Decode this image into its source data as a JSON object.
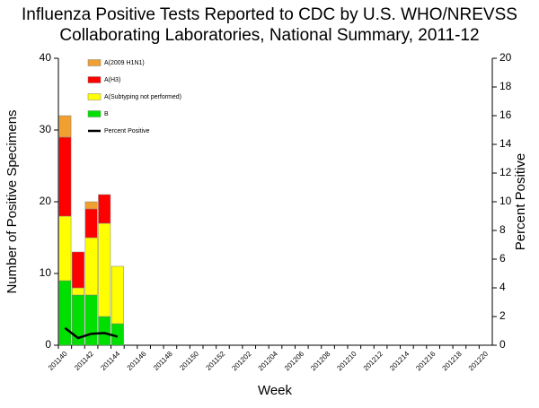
{
  "chart_data": {
    "type": "bar",
    "title": [
      "Influenza Positive Tests Reported to CDC by U.S. WHO/NREVSS",
      "Collaborating Laboratories, National Summary, 2011-12"
    ],
    "x_label": "Week",
    "y_label": "Number of Positive Specimens",
    "y2_label": "Percent Positive",
    "stacked": true,
    "legend": "top-left",
    "categories": [
      "201140",
      null,
      "201142",
      null,
      "201144",
      null,
      "201146",
      null,
      "201148",
      null,
      "201150",
      null,
      "201152",
      null,
      "201202",
      null,
      "201204",
      null,
      "201206",
      null,
      "201208",
      null,
      "201210",
      null,
      "201212",
      null,
      "201214",
      null,
      "201216",
      null,
      "201218",
      null,
      "201220"
    ],
    "series": [
      {
        "name": "A(2009 H1N1)",
        "color": "#f0a030",
        "values": [
          3,
          0,
          1,
          0,
          0,
          null,
          null,
          null,
          null,
          null,
          null,
          null,
          null,
          null,
          null,
          null,
          null,
          null,
          null,
          null,
          null,
          null,
          null,
          null,
          null,
          null,
          null,
          null,
          null,
          null,
          null,
          null,
          null
        ]
      },
      {
        "name": "A(H3)",
        "color": "#ff0000",
        "values": [
          11,
          5,
          4,
          4,
          0,
          null,
          null,
          null,
          null,
          null,
          null,
          null,
          null,
          null,
          null,
          null,
          null,
          null,
          null,
          null,
          null,
          null,
          null,
          null,
          null,
          null,
          null,
          null,
          null,
          null,
          null,
          null,
          null
        ]
      },
      {
        "name": "A(Subtyping not performed)",
        "color": "#ffff00",
        "values": [
          9,
          1,
          8,
          13,
          8,
          null,
          null,
          null,
          null,
          null,
          null,
          null,
          null,
          null,
          null,
          null,
          null,
          null,
          null,
          null,
          null,
          null,
          null,
          null,
          null,
          null,
          null,
          null,
          null,
          null,
          null,
          null,
          null
        ]
      },
      {
        "name": "B",
        "color": "#00e000",
        "values": [
          9,
          7,
          7,
          4,
          3,
          null,
          null,
          null,
          null,
          null,
          null,
          null,
          null,
          null,
          null,
          null,
          null,
          null,
          null,
          null,
          null,
          null,
          null,
          null,
          null,
          null,
          null,
          null,
          null,
          null,
          null,
          null,
          null
        ]
      },
      {
        "name": "Percent Positive",
        "type": "line",
        "axis": "y2",
        "color": "#000000",
        "values": [
          1.2,
          0.5,
          0.8,
          0.85,
          0.6,
          null,
          null,
          null,
          null,
          null,
          null,
          null,
          null,
          null,
          null,
          null,
          null,
          null,
          null,
          null,
          null,
          null,
          null,
          null,
          null,
          null,
          null,
          null,
          null,
          null,
          null,
          null,
          null
        ]
      }
    ],
    "ylim": [
      0,
      40
    ],
    "yticks": [
      0,
      10,
      20,
      30,
      40
    ],
    "y2lim": [
      0,
      20
    ],
    "y2ticks": [
      0,
      2,
      4,
      6,
      8,
      10,
      12,
      14,
      16,
      18,
      20
    ]
  }
}
